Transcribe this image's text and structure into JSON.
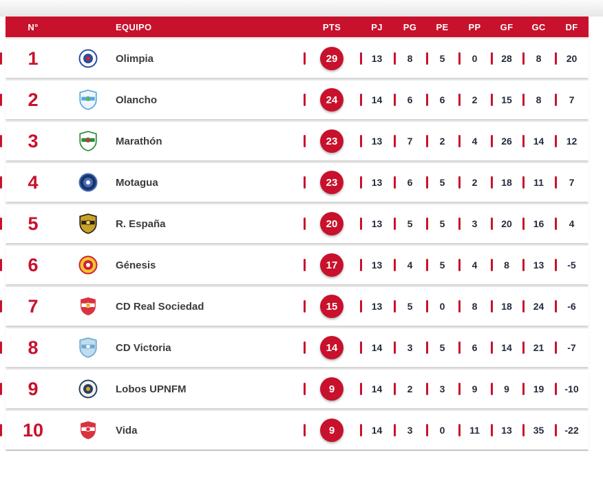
{
  "colors": {
    "accent_red": "#c8112c",
    "header_text": "#ffffff",
    "rank_text": "#c8112c",
    "team_text": "#3b3b3b",
    "stat_text": "#232c3d",
    "row_bg": "#ffffff",
    "gap_bg": "#ebebeb"
  },
  "header": {
    "rank": "N°",
    "team": "EQUIPO",
    "stats": [
      "PTS",
      "PJ",
      "PG",
      "PE",
      "PP",
      "GF",
      "GC",
      "DF"
    ]
  },
  "rows": [
    {
      "rank": "1",
      "team": "Olimpia",
      "pts": "29",
      "stats": [
        "13",
        "8",
        "5",
        "0",
        "28",
        "8",
        "20"
      ],
      "crest": {
        "name": "olimpia-crest",
        "shape": "circle",
        "colors": [
          "#ffffff",
          "#2a4da0",
          "#cf2233"
        ]
      }
    },
    {
      "rank": "2",
      "team": "Olancho",
      "pts": "24",
      "stats": [
        "14",
        "6",
        "6",
        "2",
        "15",
        "8",
        "7"
      ],
      "crest": {
        "name": "olancho-crest",
        "shape": "shield",
        "colors": [
          "#eef6fd",
          "#5aa8d8",
          "#59b64e"
        ]
      }
    },
    {
      "rank": "3",
      "team": "Marathón",
      "pts": "23",
      "stats": [
        "13",
        "7",
        "2",
        "4",
        "26",
        "14",
        "12"
      ],
      "crest": {
        "name": "marathon-crest",
        "shape": "shield",
        "colors": [
          "#ffffff",
          "#2e8b3a",
          "#d03340"
        ]
      }
    },
    {
      "rank": "4",
      "team": "Motagua",
      "pts": "23",
      "stats": [
        "13",
        "6",
        "5",
        "2",
        "18",
        "11",
        "7"
      ],
      "crest": {
        "name": "motagua-crest",
        "shape": "circle",
        "colors": [
          "#16356e",
          "#4a6db5",
          "#ffffff"
        ]
      }
    },
    {
      "rank": "5",
      "team": "R. España",
      "pts": "20",
      "stats": [
        "13",
        "5",
        "5",
        "3",
        "20",
        "16",
        "4"
      ],
      "crest": {
        "name": "real-espana-crest",
        "shape": "shield",
        "colors": [
          "#c9a227",
          "#2b2417",
          "#e7cf6b"
        ]
      }
    },
    {
      "rank": "6",
      "team": "Génesis",
      "pts": "17",
      "stats": [
        "13",
        "4",
        "5",
        "4",
        "8",
        "13",
        "-5"
      ],
      "crest": {
        "name": "genesis-crest",
        "shape": "circle",
        "colors": [
          "#f4c430",
          "#cf2233",
          "#ffffff"
        ]
      }
    },
    {
      "rank": "7",
      "team": "CD Real Sociedad",
      "pts": "15",
      "stats": [
        "13",
        "5",
        "0",
        "8",
        "18",
        "24",
        "-6"
      ],
      "crest": {
        "name": "real-sociedad-crest",
        "shape": "shield",
        "colors": [
          "#d8343f",
          "#ffffff",
          "#e8b02a"
        ]
      }
    },
    {
      "rank": "8",
      "team": "CD Victoria",
      "pts": "14",
      "stats": [
        "14",
        "3",
        "5",
        "6",
        "14",
        "21",
        "-7"
      ],
      "crest": {
        "name": "victoria-crest",
        "shape": "shield",
        "colors": [
          "#bfdcf0",
          "#6fa8cf",
          "#ffffff"
        ]
      }
    },
    {
      "rank": "9",
      "team": "Lobos UPNFM",
      "pts": "9",
      "stats": [
        "14",
        "2",
        "3",
        "9",
        "9",
        "19",
        "-10"
      ],
      "crest": {
        "name": "lobos-upnfm-crest",
        "shape": "circle",
        "colors": [
          "#f2f2f2",
          "#27415f",
          "#e0a42b"
        ]
      }
    },
    {
      "rank": "10",
      "team": "Vida",
      "pts": "9",
      "stats": [
        "14",
        "3",
        "0",
        "11",
        "13",
        "35",
        "-22"
      ],
      "crest": {
        "name": "vida-crest",
        "shape": "shield",
        "colors": [
          "#d8343f",
          "#ffffff",
          "#d8343f"
        ]
      }
    }
  ],
  "chart_data": {
    "type": "table",
    "title": "",
    "columns": [
      "N°",
      "EQUIPO",
      "PTS",
      "PJ",
      "PG",
      "PE",
      "PP",
      "GF",
      "GC",
      "DF"
    ],
    "rows": [
      [
        1,
        "Olimpia",
        29,
        13,
        8,
        5,
        0,
        28,
        8,
        20
      ],
      [
        2,
        "Olancho",
        24,
        14,
        6,
        6,
        2,
        15,
        8,
        7
      ],
      [
        3,
        "Marathón",
        23,
        13,
        7,
        2,
        4,
        26,
        14,
        12
      ],
      [
        4,
        "Motagua",
        23,
        13,
        6,
        5,
        2,
        18,
        11,
        7
      ],
      [
        5,
        "R. España",
        20,
        13,
        5,
        5,
        3,
        20,
        16,
        4
      ],
      [
        6,
        "Génesis",
        17,
        13,
        4,
        5,
        4,
        8,
        13,
        -5
      ],
      [
        7,
        "CD Real Sociedad",
        15,
        13,
        5,
        0,
        8,
        18,
        24,
        -6
      ],
      [
        8,
        "CD Victoria",
        14,
        14,
        3,
        5,
        6,
        14,
        21,
        -7
      ],
      [
        9,
        "Lobos UPNFM",
        9,
        14,
        2,
        3,
        9,
        9,
        19,
        -10
      ],
      [
        10,
        "Vida",
        9,
        14,
        3,
        0,
        11,
        13,
        35,
        -22
      ]
    ]
  }
}
